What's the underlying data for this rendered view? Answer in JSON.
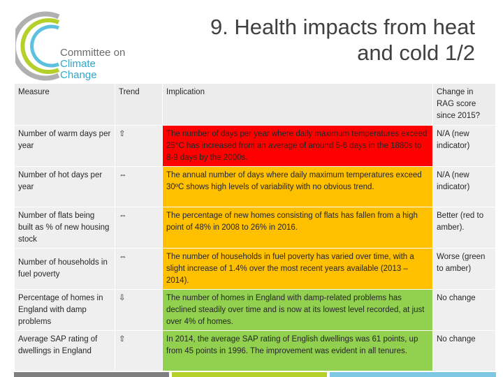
{
  "logo": {
    "line1": "Committee on",
    "line2": "Climate Change"
  },
  "title": {
    "line1": "9. Health impacts from heat",
    "line2": "and cold 1/2"
  },
  "table": {
    "headers": {
      "measure": "Measure",
      "trend": "Trend",
      "implication": "Implication",
      "change": "Change in RAG score since 2015?"
    },
    "rows": [
      {
        "measure": "Number of warm days per year",
        "trend": "⇧",
        "implication": "The number of days per year where daily maximum temperatures exceed 25°C has increased from an average of around 5-6 days in the 1880s to 8-9 days by the 2000s.",
        "change": "N/A (new indicator)",
        "rag": "red"
      },
      {
        "measure": "Number of hot days per year",
        "trend": "⇔",
        "implication": "The annual number of days where daily maximum temperatures exceed 30ºC shows high levels of variability with no obvious trend.",
        "change": "N/A (new indicator)",
        "rag": "amber"
      },
      {
        "measure": "Number of flats being built as % of new housing stock",
        "trend": "⇔",
        "implication": "The percentage of new homes consisting of flats has fallen from a high point of 48% in 2008 to 26% in 2016.",
        "change": "Better (red to amber).",
        "rag": "amber"
      },
      {
        "measure": "Number of households in fuel poverty",
        "trend": "⇔",
        "implication": "The number of households in fuel poverty has varied over time, with a slight increase of 1.4% over the most recent years available (2013 – 2014).",
        "change": "Worse (green to amber)",
        "rag": "amber"
      },
      {
        "measure": "Percentage of homes in England with damp problems",
        "trend": "⇩",
        "implication": "The number of homes in England with damp-related problems has declined steadily over time and is now at its lowest level recorded, at just over 4% of homes.",
        "change": "No change",
        "rag": "green"
      },
      {
        "measure": "Average SAP rating of dwellings in England",
        "trend": "⇧",
        "implication": "In 2014, the average SAP rating of English dwellings was 61 points, up from 45 points in 1996. The improvement was evident in all tenures.",
        "change": "No change",
        "rag": "green"
      }
    ]
  },
  "colors": {
    "red": "#ff0000",
    "amber": "#ffc000",
    "green": "#92d050",
    "bar_gray": "#7f7f7f",
    "bar_green": "#b5cf2b",
    "bar_blue": "#7ec7e3"
  }
}
